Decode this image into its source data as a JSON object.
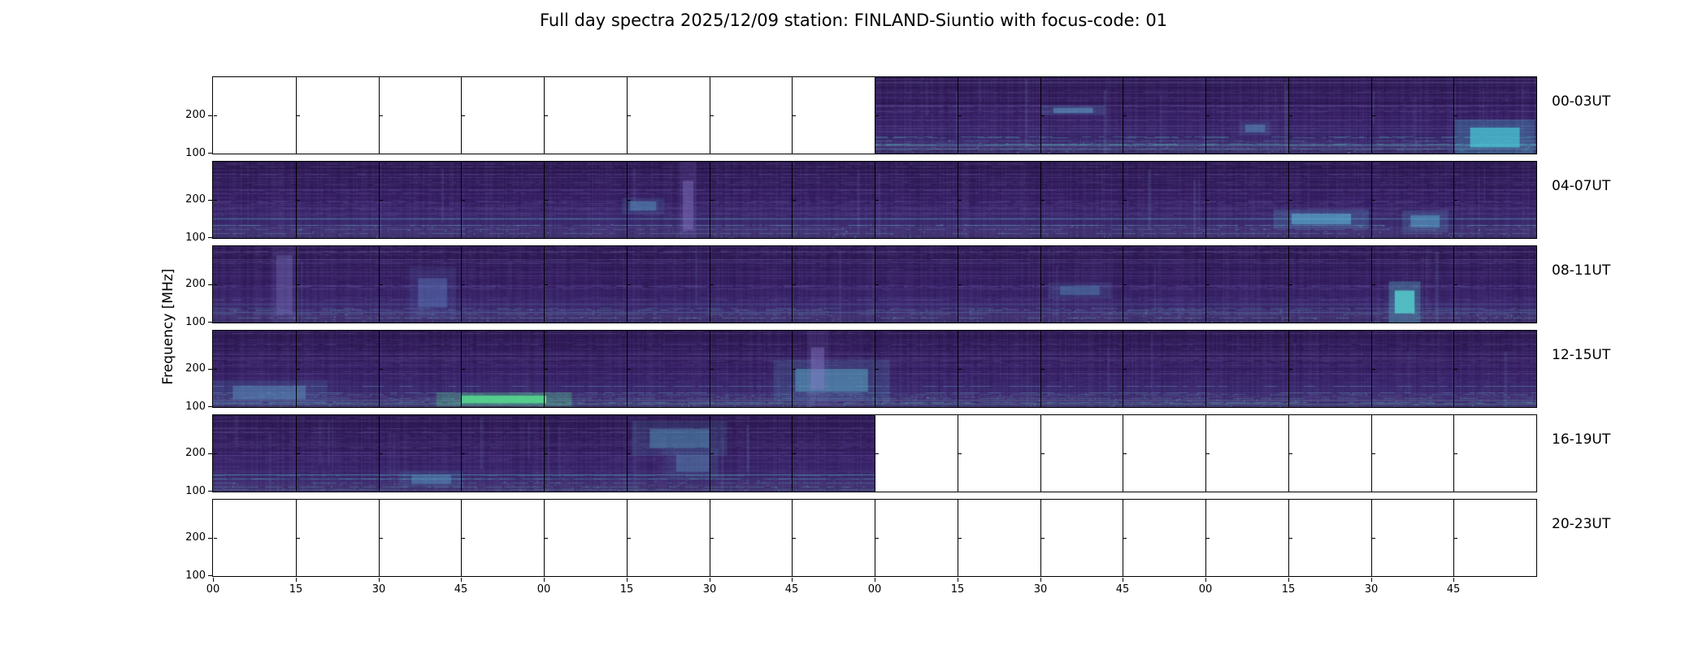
{
  "title": "Full day spectra 2025/12/09 station: FINLAND-Siuntio with focus-code: 01",
  "ylabel": "Frequency [MHz]",
  "chart_data": {
    "type": "heatmap",
    "title": "Full day spectra 2025/12/09 station: FINLAND-Siuntio with focus-code: 01",
    "date": "2025/12/09",
    "station": "FINLAND-Siuntio",
    "focus_code": "01",
    "ylabel": "Frequency [MHz]",
    "y_scale": "log",
    "y_ticks": [
      {
        "label": "200",
        "frac": 0.5
      },
      {
        "label": "100",
        "frac": 1.0
      }
    ],
    "x_tick_labels": [
      "00",
      "15",
      "30",
      "45",
      "00",
      "15",
      "30",
      "45",
      "00",
      "15",
      "30",
      "45",
      "00",
      "15",
      "30",
      "45"
    ],
    "segments_per_row": 16,
    "segment_minutes": 15,
    "colors": {
      "background": "#ffffff",
      "spectrum_base": "#382066",
      "spectrum_dark": "#2e1a54",
      "interference_teal": "#5aaabd",
      "bright_event_green": "#55d28c",
      "bright_event_cyan": "#49c4d4"
    },
    "rows": [
      {
        "label": "00-03UT",
        "data_start": 0.5,
        "data_end": 1.0,
        "events": [
          {
            "x": 0.9,
            "y": 0.66,
            "w": 0.075,
            "h": 0.26,
            "color": "#49c4d4",
            "alpha": 0.75
          },
          {
            "x": 0.27,
            "y": 0.4,
            "w": 0.06,
            "h": 0.07,
            "color": "#62a8cc",
            "alpha": 0.5
          },
          {
            "x": 0.56,
            "y": 0.62,
            "w": 0.03,
            "h": 0.1,
            "color": "#5b9cc4",
            "alpha": 0.45
          }
        ]
      },
      {
        "label": "04-07UT",
        "data_start": 0.0,
        "data_end": 1.0,
        "events": [
          {
            "x": 0.815,
            "y": 0.68,
            "w": 0.045,
            "h": 0.14,
            "color": "#5cb4d4",
            "alpha": 0.6
          },
          {
            "x": 0.905,
            "y": 0.7,
            "w": 0.022,
            "h": 0.16,
            "color": "#56a6c8",
            "alpha": 0.55
          },
          {
            "x": 0.355,
            "y": 0.25,
            "w": 0.008,
            "h": 0.65,
            "color": "#8a7ac8",
            "alpha": 0.4
          },
          {
            "x": 0.315,
            "y": 0.52,
            "w": 0.02,
            "h": 0.12,
            "color": "#569ec4",
            "alpha": 0.45
          }
        ]
      },
      {
        "label": "08-11UT",
        "data_start": 0.0,
        "data_end": 1.0,
        "events": [
          {
            "x": 0.893,
            "y": 0.58,
            "w": 0.015,
            "h": 0.3,
            "color": "#55cccc",
            "alpha": 0.85
          },
          {
            "x": 0.155,
            "y": 0.42,
            "w": 0.022,
            "h": 0.38,
            "color": "#5c80c0",
            "alpha": 0.4
          },
          {
            "x": 0.048,
            "y": 0.12,
            "w": 0.012,
            "h": 0.78,
            "color": "#7468b4",
            "alpha": 0.4
          },
          {
            "x": 0.64,
            "y": 0.52,
            "w": 0.03,
            "h": 0.12,
            "color": "#5694bc",
            "alpha": 0.4
          }
        ]
      },
      {
        "label": "12-15UT",
        "data_start": 0.0,
        "data_end": 1.0,
        "events": [
          {
            "x": 0.188,
            "y": 0.85,
            "w": 0.064,
            "h": 0.1,
            "color": "#55d28c",
            "alpha": 0.95
          },
          {
            "x": 0.44,
            "y": 0.5,
            "w": 0.055,
            "h": 0.3,
            "color": "#57acc4",
            "alpha": 0.5
          },
          {
            "x": 0.452,
            "y": 0.22,
            "w": 0.01,
            "h": 0.55,
            "color": "#8a7ac8",
            "alpha": 0.4
          },
          {
            "x": 0.015,
            "y": 0.72,
            "w": 0.055,
            "h": 0.18,
            "color": "#5a9cc4",
            "alpha": 0.45
          }
        ]
      },
      {
        "label": "16-19UT",
        "data_start": 0.0,
        "data_end": 0.5,
        "events": [
          {
            "x": 0.66,
            "y": 0.18,
            "w": 0.09,
            "h": 0.25,
            "color": "#55a8c4",
            "alpha": 0.4
          },
          {
            "x": 0.7,
            "y": 0.52,
            "w": 0.05,
            "h": 0.22,
            "color": "#5a94bc",
            "alpha": 0.4
          },
          {
            "x": 0.3,
            "y": 0.78,
            "w": 0.06,
            "h": 0.12,
            "color": "#58aacb",
            "alpha": 0.4
          }
        ]
      },
      {
        "label": "20-23UT",
        "data_start": 0.0,
        "data_end": 0.0,
        "events": []
      }
    ]
  }
}
